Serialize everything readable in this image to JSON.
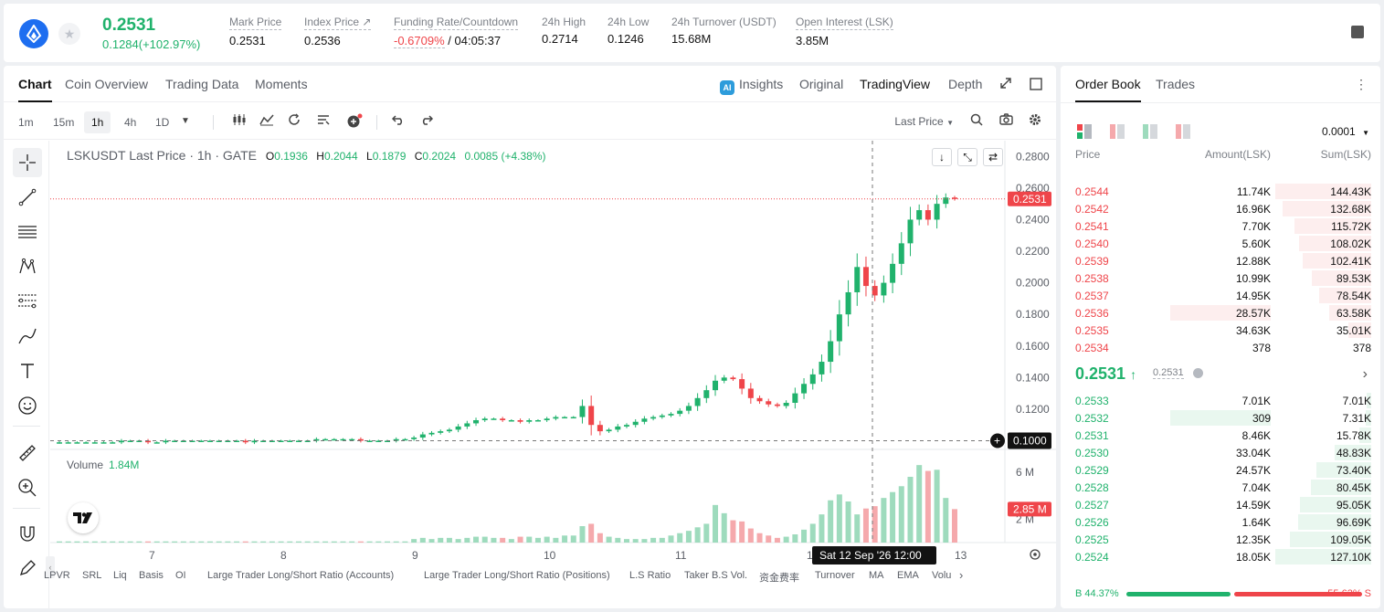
{
  "header": {
    "last_price": "0.2531",
    "change": "0.1284(+102.97%)",
    "stats": [
      {
        "label": "Mark Price",
        "value": "0.2531"
      },
      {
        "label": "Index Price ↗",
        "value": "0.2536"
      },
      {
        "label": "Funding Rate/Countdown",
        "value_neg": "-0.6709%",
        "value": " / 04:05:37"
      },
      {
        "label": "24h High",
        "value": "0.2714"
      },
      {
        "label": "24h Low",
        "value": "0.1246"
      },
      {
        "label": "24h Turnover (USDT)",
        "value": "15.68M"
      },
      {
        "label": "Open Interest (LSK)",
        "value": "3.85M"
      }
    ]
  },
  "tabs": {
    "chart": "Chart",
    "coin_overview": "Coin Overview",
    "trading_data": "Trading Data",
    "moments": "Moments",
    "insights": "Insights",
    "original": "Original",
    "tradingview": "TradingView",
    "depth": "Depth"
  },
  "toolbar": {
    "timeframes": [
      "1m",
      "15m",
      "1h",
      "4h",
      "1D"
    ],
    "active_timeframe": "1h",
    "price_type": "Last Price"
  },
  "chart_legend": {
    "symbol": "LSKUSDT Last Price · 1h · GATE",
    "o_label": "O",
    "o": "0.1936",
    "h_label": "H",
    "h": "0.2044",
    "l_label": "L",
    "l": "0.1879",
    "c_label": "C",
    "c": "0.2024",
    "chg": "0.0085 (+4.38%)",
    "volume_label": "Volume",
    "volume": "1.84M"
  },
  "chart_data": {
    "type": "candlestick",
    "y_ticks": [
      "0.2800",
      "0.2600",
      "0.2400",
      "0.2200",
      "0.2000",
      "0.1800",
      "0.1600",
      "0.1400",
      "0.1200"
    ],
    "ylim": [
      0.0945,
      0.29
    ],
    "current_price": "0.2531",
    "crosshair_price": "0.1000",
    "x_ticks": [
      "7",
      "8",
      "9",
      "10",
      "11",
      "12",
      "13"
    ],
    "crosshair_time": "Sat 12 Sep '26   12:00",
    "vol_ticks": [
      "6 M",
      "2 M"
    ],
    "vol_current": "2.85 M",
    "price_series": [
      0.099,
      0.099,
      0.099,
      0.099,
      0.099,
      0.099,
      0.099,
      0.1,
      0.1,
      0.1,
      0.099,
      0.099,
      0.1,
      0.1,
      0.1,
      0.1,
      0.1,
      0.1,
      0.1,
      0.1,
      0.1,
      0.099,
      0.1,
      0.1,
      0.1,
      0.1,
      0.1,
      0.1,
      0.1,
      0.101,
      0.101,
      0.101,
      0.101,
      0.101,
      0.1,
      0.1,
      0.1,
      0.1,
      0.101,
      0.101,
      0.102,
      0.104,
      0.105,
      0.106,
      0.107,
      0.109,
      0.111,
      0.113,
      0.114,
      0.114,
      0.113,
      0.113,
      0.112,
      0.113,
      0.113,
      0.114,
      0.115,
      0.115,
      0.115,
      0.122,
      0.11,
      0.106,
      0.107,
      0.109,
      0.11,
      0.112,
      0.114,
      0.115,
      0.116,
      0.117,
      0.119,
      0.122,
      0.127,
      0.132,
      0.138,
      0.14,
      0.139,
      0.133,
      0.127,
      0.125,
      0.123,
      0.122,
      0.124,
      0.13,
      0.136,
      0.142,
      0.15,
      0.163,
      0.18,
      0.194,
      0.21,
      0.198,
      0.192,
      0.2,
      0.212,
      0.225,
      0.24,
      0.246,
      0.24,
      0.25,
      0.254,
      0.2531
    ],
    "volume_series": [
      0.1,
      0.1,
      0.1,
      0.1,
      0.1,
      0.1,
      0.1,
      0.1,
      0.1,
      0.1,
      0.1,
      0.1,
      0.1,
      0.1,
      0.1,
      0.1,
      0.1,
      0.1,
      0.1,
      0.1,
      0.1,
      0.1,
      0.1,
      0.1,
      0.1,
      0.1,
      0.1,
      0.1,
      0.1,
      0.1,
      0.1,
      0.1,
      0.1,
      0.1,
      0.1,
      0.1,
      0.1,
      0.1,
      0.1,
      0.1,
      0.3,
      0.4,
      0.3,
      0.4,
      0.4,
      0.3,
      0.4,
      0.5,
      0.5,
      0.4,
      0.4,
      0.3,
      0.5,
      0.5,
      0.4,
      0.5,
      0.4,
      0.6,
      0.6,
      1.4,
      1.6,
      0.8,
      0.5,
      0.4,
      0.3,
      0.3,
      0.3,
      0.4,
      0.4,
      0.6,
      0.8,
      1.0,
      1.3,
      1.6,
      3.2,
      2.5,
      1.9,
      1.8,
      1.2,
      0.8,
      0.6,
      0.4,
      0.5,
      0.7,
      1.1,
      1.6,
      2.4,
      3.6,
      4.1,
      3.5,
      2.4,
      2.9,
      3.1,
      3.8,
      4.3,
      4.8,
      5.6,
      6.6,
      6.1,
      6.2,
      3.8,
      2.85
    ]
  },
  "bottom_indicators": [
    "LPVR",
    "SRL",
    "Liq",
    "Basis",
    "OI",
    "Large Trader Long/Short Ratio (Accounts)",
    "Large Trader Long/Short Ratio (Positions)",
    "L.S Ratio",
    "Taker B.S Vol.",
    "资金费率",
    "Turnover",
    "MA",
    "EMA",
    "Volu"
  ],
  "orderbook": {
    "tabs": {
      "book": "Order Book",
      "trades": "Trades"
    },
    "precision": "0.0001",
    "headers": {
      "price": "Price",
      "amount": "Amount(LSK)",
      "sum": "Sum(LSK)"
    },
    "asks": [
      {
        "p": "0.2544",
        "a": "11.74K",
        "s": "144.43K",
        "depth": 1.0,
        "amt": 0
      },
      {
        "p": "0.2542",
        "a": "16.96K",
        "s": "132.68K",
        "depth": 0.92,
        "amt": 0
      },
      {
        "p": "0.2541",
        "a": "7.70K",
        "s": "115.72K",
        "depth": 0.8,
        "amt": 0
      },
      {
        "p": "0.2540",
        "a": "5.60K",
        "s": "108.02K",
        "depth": 0.75,
        "amt": 0
      },
      {
        "p": "0.2539",
        "a": "12.88K",
        "s": "102.41K",
        "depth": 0.71,
        "amt": 0
      },
      {
        "p": "0.2538",
        "a": "10.99K",
        "s": "89.53K",
        "depth": 0.62,
        "amt": 0
      },
      {
        "p": "0.2537",
        "a": "14.95K",
        "s": "78.54K",
        "depth": 0.54,
        "amt": 0
      },
      {
        "p": "0.2536",
        "a": "28.57K",
        "s": "63.58K",
        "depth": 0.44,
        "amt": 1.0
      },
      {
        "p": "0.2535",
        "a": "34.63K",
        "s": "35.01K",
        "depth": 0.24,
        "amt": 0
      },
      {
        "p": "0.2534",
        "a": "378",
        "s": "378",
        "depth": 0.0,
        "amt": 0
      }
    ],
    "mid_price": "0.2531",
    "mark_price": "0.2531",
    "bids": [
      {
        "p": "0.2533",
        "a": "7.01K",
        "s": "7.01K",
        "depth": 0.05,
        "amt": 0
      },
      {
        "p": "0.2532",
        "a": "309",
        "s": "7.31K",
        "depth": 0.06,
        "amt": 1.0
      },
      {
        "p": "0.2531",
        "a": "8.46K",
        "s": "15.78K",
        "depth": 0.12,
        "amt": 0
      },
      {
        "p": "0.2530",
        "a": "33.04K",
        "s": "48.83K",
        "depth": 0.38,
        "amt": 0
      },
      {
        "p": "0.2529",
        "a": "24.57K",
        "s": "73.40K",
        "depth": 0.57,
        "amt": 0
      },
      {
        "p": "0.2528",
        "a": "7.04K",
        "s": "80.45K",
        "depth": 0.63,
        "amt": 0
      },
      {
        "p": "0.2527",
        "a": "14.59K",
        "s": "95.05K",
        "depth": 0.74,
        "amt": 0
      },
      {
        "p": "0.2526",
        "a": "1.64K",
        "s": "96.69K",
        "depth": 0.76,
        "amt": 0
      },
      {
        "p": "0.2525",
        "a": "12.35K",
        "s": "109.05K",
        "depth": 0.85,
        "amt": 0
      },
      {
        "p": "0.2524",
        "a": "18.05K",
        "s": "127.10K",
        "depth": 1.0,
        "amt": 0
      }
    ],
    "buy_ratio": "B 44.37%",
    "sell_ratio": "55.63% S",
    "buy_fraction": 0.4437
  },
  "colors": {
    "up": "#20b26c",
    "down": "#ef454a",
    "up_vol": "#9edbbd",
    "down_vol": "#f5a9ac"
  }
}
